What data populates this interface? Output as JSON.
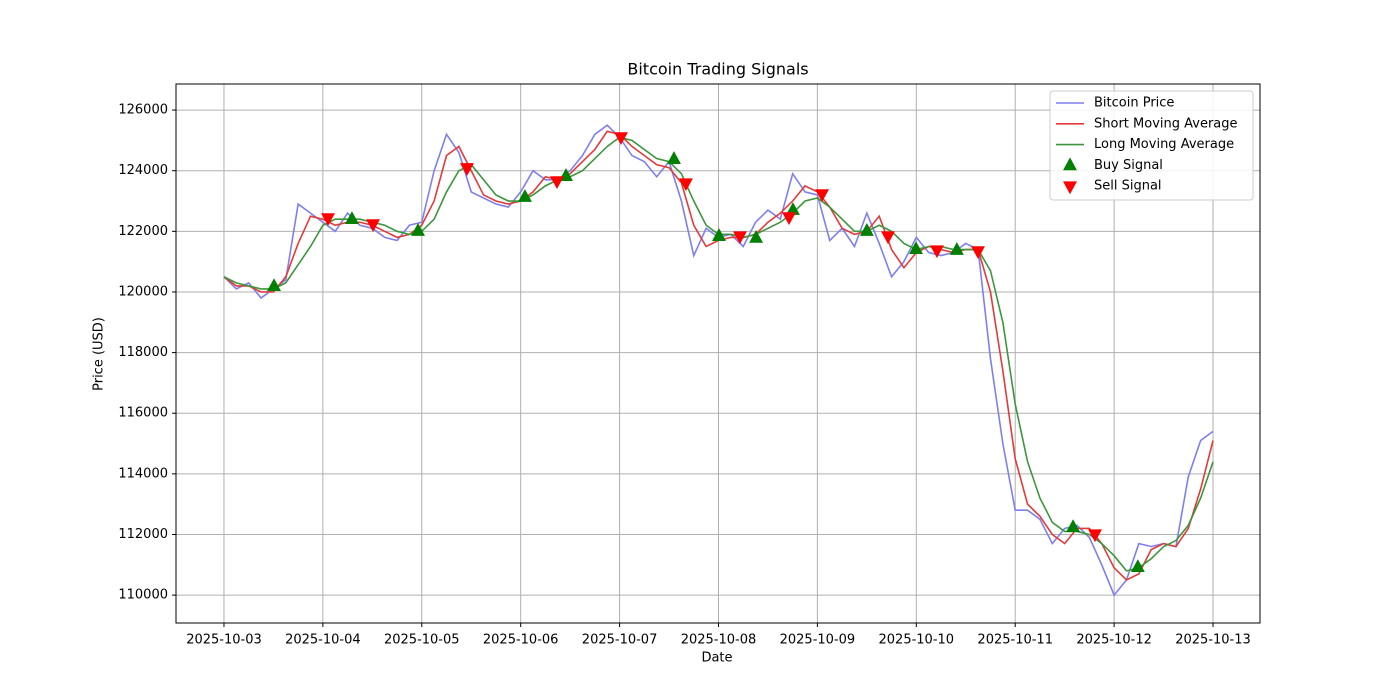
{
  "chart_data": {
    "type": "line",
    "title": "Bitcoin Trading Signals",
    "x_label": "Date",
    "y_label": "Price (USD)",
    "grid": true,
    "legend": "upper right",
    "xlim": [
      -0.485,
      10.475
    ],
    "ylim": [
      109080,
      126860
    ],
    "xticks": [
      {
        "value": 0,
        "label": "2025-10-03"
      },
      {
        "value": 1,
        "label": "2025-10-04"
      },
      {
        "value": 2,
        "label": "2025-10-05"
      },
      {
        "value": 3,
        "label": "2025-10-06"
      },
      {
        "value": 4,
        "label": "2025-10-07"
      },
      {
        "value": 5,
        "label": "2025-10-08"
      },
      {
        "value": 6,
        "label": "2025-10-09"
      },
      {
        "value": 7,
        "label": "2025-10-10"
      },
      {
        "value": 8,
        "label": "2025-10-11"
      },
      {
        "value": 9,
        "label": "2025-10-12"
      },
      {
        "value": 10,
        "label": "2025-10-13"
      }
    ],
    "yticks": [
      110000,
      112000,
      114000,
      116000,
      118000,
      120000,
      122000,
      124000,
      126000
    ],
    "x": [
      0,
      0.125,
      0.25,
      0.375,
      0.5,
      0.625,
      0.75,
      0.875,
      1,
      1.125,
      1.25,
      1.375,
      1.5,
      1.625,
      1.75,
      1.875,
      2,
      2.125,
      2.25,
      2.375,
      2.5,
      2.625,
      2.75,
      2.875,
      3,
      3.125,
      3.25,
      3.375,
      3.5,
      3.625,
      3.75,
      3.875,
      4,
      4.125,
      4.25,
      4.375,
      4.5,
      4.625,
      4.75,
      4.875,
      5,
      5.125,
      5.25,
      5.375,
      5.5,
      5.625,
      5.75,
      5.875,
      6,
      6.125,
      6.25,
      6.375,
      6.5,
      6.625,
      6.75,
      6.875,
      7,
      7.125,
      7.25,
      7.375,
      7.5,
      7.625,
      7.75,
      7.875,
      8,
      8.125,
      8.25,
      8.375,
      8.5,
      8.625,
      8.75,
      8.875,
      9,
      9.125,
      9.25,
      9.375,
      9.5,
      9.625,
      9.75,
      9.875,
      10
    ],
    "series": [
      {
        "name": "Bitcoin Price",
        "color": "#7f7fef",
        "values": [
          120500,
          120100,
          120300,
          119800,
          120100,
          120400,
          122900,
          122600,
          122300,
          122000,
          122600,
          122200,
          122100,
          121800,
          121700,
          122200,
          122300,
          124000,
          125200,
          124600,
          123300,
          123100,
          122900,
          122800,
          123300,
          124000,
          123700,
          123700,
          124000,
          124500,
          125200,
          125500,
          125100,
          124500,
          124300,
          123800,
          124300,
          123000,
          121200,
          122100,
          121800,
          121900,
          121500,
          122300,
          122700,
          122400,
          123900,
          123300,
          123200,
          121700,
          122100,
          121500,
          122600,
          121600,
          120500,
          121000,
          121800,
          121300,
          121200,
          121300,
          121600,
          121400,
          117800,
          115000,
          112800,
          112800,
          112500,
          111700,
          112200,
          112300,
          111900,
          111000,
          110000,
          110500,
          111700,
          111600,
          111700,
          111600,
          113900,
          115100,
          115400
        ]
      },
      {
        "name": "Short Moving Average",
        "color": "#e33a3a",
        "values": [
          120500,
          120200,
          120200,
          120000,
          120000,
          120500,
          121600,
          122500,
          122400,
          122200,
          122300,
          122300,
          122200,
          122000,
          121800,
          121900,
          122200,
          123000,
          124500,
          124800,
          124000,
          123200,
          123000,
          122900,
          123000,
          123300,
          123800,
          123700,
          123900,
          124300,
          124700,
          125300,
          125200,
          124800,
          124500,
          124200,
          124100,
          123600,
          122200,
          121500,
          121700,
          121800,
          121800,
          121900,
          122300,
          122600,
          123000,
          123500,
          123300,
          122800,
          122100,
          121900,
          122000,
          122500,
          121400,
          120800,
          121300,
          121500,
          121400,
          121300,
          121400,
          121400,
          120000,
          117400,
          114500,
          113000,
          112600,
          112000,
          111700,
          112200,
          112200,
          111700,
          110900,
          110500,
          110700,
          111500,
          111700,
          111600,
          112200,
          113500,
          115100
        ]
      },
      {
        "name": "Long Moving Average",
        "color": "#3c963c",
        "values": [
          120500,
          120300,
          120200,
          120100,
          120100,
          120300,
          120900,
          121500,
          122200,
          122400,
          122400,
          122400,
          122300,
          122200,
          122000,
          121900,
          122000,
          122400,
          123300,
          124000,
          124200,
          123700,
          123200,
          123000,
          123000,
          123200,
          123500,
          123700,
          123800,
          124000,
          124400,
          124800,
          125100,
          125000,
          124700,
          124400,
          124300,
          123900,
          123000,
          122200,
          121900,
          121900,
          121800,
          121900,
          122100,
          122300,
          122600,
          123000,
          123100,
          122800,
          122400,
          122000,
          122000,
          122200,
          122000,
          121600,
          121400,
          121500,
          121500,
          121400,
          121400,
          121400,
          120700,
          119000,
          116300,
          114400,
          113200,
          112400,
          112100,
          112100,
          112000,
          111700,
          111300,
          110800,
          110900,
          111200,
          111600,
          111800,
          112300,
          113200,
          114400
        ]
      },
      {
        "name": "Buy Signal",
        "color": "#008000",
        "marker": "up",
        "x": [
          0.506,
          1.294,
          1.962,
          3.043,
          3.458,
          4.55,
          5.005,
          5.38,
          5.753,
          6.5,
          6.997,
          7.41,
          8.585,
          9.24
        ],
        "values": [
          120190,
          122400,
          122010,
          123130,
          123820,
          124380,
          121840,
          121780,
          122700,
          122010,
          121410,
          121380,
          112240,
          110920
        ]
      },
      {
        "name": "Sell Signal",
        "color": "#ff0000",
        "marker": "down",
        "x": [
          1.052,
          1.507,
          2.457,
          3.367,
          4.014,
          4.671,
          5.217,
          5.713,
          6.047,
          6.714,
          7.209,
          7.624,
          8.807
        ],
        "values": [
          122440,
          122240,
          124090,
          123660,
          125110,
          123590,
          121840,
          122470,
          123230,
          121840,
          121380,
          121350,
          112010
        ]
      }
    ]
  }
}
